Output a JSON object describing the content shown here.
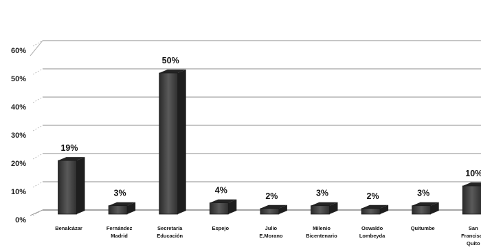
{
  "chart_data": {
    "type": "bar",
    "categories": [
      [
        "Benalcázar"
      ],
      [
        "Fernández",
        "Madrid"
      ],
      [
        "Secretaría",
        "Educación"
      ],
      [
        "Espejo"
      ],
      [
        "Julio",
        "E.Morano"
      ],
      [
        "Milenio",
        "Bicentenario"
      ],
      [
        "Oswaldo",
        "Lombeyda"
      ],
      [
        "Quitumbe"
      ],
      [
        "San",
        "Francisco",
        "Quito"
      ]
    ],
    "values": [
      19,
      3,
      50,
      4,
      2,
      3,
      2,
      3,
      10
    ],
    "data_labels": [
      "19%",
      "3%",
      "50%",
      "4%",
      "2%",
      "3%",
      "2%",
      "3%",
      "10%"
    ],
    "y_ticks": [
      "0%",
      "10%",
      "20%",
      "30%",
      "40%",
      "50%",
      "60%"
    ],
    "ylim": [
      0,
      60
    ],
    "grid": true,
    "bar_color": "#3a3a3a",
    "title": "",
    "xlabel": "",
    "ylabel": ""
  }
}
